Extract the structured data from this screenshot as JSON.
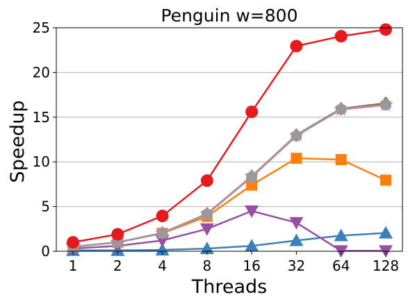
{
  "chart_data": {
    "type": "line",
    "title": "Penguin w=800",
    "xlabel": "Threads",
    "ylabel": "Speedup",
    "x": [
      "1",
      "2",
      "4",
      "8",
      "16",
      "32",
      "64",
      "128"
    ],
    "y_ticks": [
      "0",
      "5",
      "10",
      "15",
      "20",
      "25"
    ],
    "ylim": [
      0,
      25
    ],
    "grid": "horizontal",
    "legend": "none",
    "series": [
      {
        "marker": "triangle-up",
        "color": "#3a80b9",
        "values": [
          0.1,
          0.1,
          0.15,
          0.3,
          0.6,
          1.2,
          1.75,
          2.05
        ]
      },
      {
        "marker": "square",
        "color": "#ff7f0e",
        "values": [
          0.5,
          1.0,
          2.0,
          3.9,
          7.4,
          10.4,
          10.25,
          7.95
        ]
      },
      {
        "marker": "triangle-down",
        "color": "#984ea3",
        "values": [
          0.3,
          0.6,
          1.2,
          2.5,
          4.5,
          3.2,
          0.05,
          0.05
        ]
      },
      {
        "marker": "diamond",
        "color": "#a65628",
        "values": [
          0.5,
          1.0,
          2.05,
          4.2,
          8.4,
          13.0,
          15.95,
          16.55
        ]
      },
      {
        "marker": "star",
        "color": "#f781bf",
        "values": [
          0.5,
          1.0,
          2.05,
          4.2,
          8.4,
          12.95,
          15.85,
          16.35
        ]
      },
      {
        "marker": "hexagon",
        "color": "#999999",
        "values": [
          0.5,
          1.0,
          2.0,
          4.15,
          8.3,
          12.9,
          15.9,
          16.4
        ]
      },
      {
        "marker": "circle",
        "color": "#e41a1c",
        "values": [
          1.0,
          1.9,
          3.95,
          7.9,
          15.6,
          22.95,
          24.05,
          24.8
        ]
      }
    ]
  }
}
